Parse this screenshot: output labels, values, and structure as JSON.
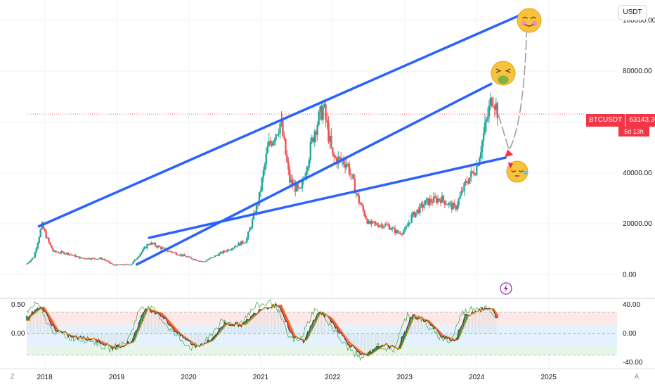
{
  "quote_currency": "USDT",
  "symbol": "BTCUSDT",
  "last_price": "63143.30",
  "countdown": "5d 13h",
  "corner_left": "Z",
  "corner_right": "A",
  "colors": {
    "up": "#26a69a",
    "down": "#ef5350",
    "trendline": "#2962ff",
    "price_line": "#f23645",
    "projection": "#9e9e9e",
    "osc_fill": "#e3f2fd",
    "osc_band_top": "#fce8e8",
    "osc_band_bottom": "#e8f5e9"
  },
  "icons": [
    "smiling-blush-emoji-icon",
    "nauseated-face-emoji-icon",
    "party-face-emoji-icon",
    "lightning-icon"
  ],
  "chart_data": [
    {
      "type": "candlestick",
      "x_ticks": [
        "2018",
        "2019",
        "2020",
        "2021",
        "2022",
        "2023",
        "2024",
        "2025"
      ],
      "y_ticks": [
        "0.00",
        "20000.00",
        "40000.00",
        "60000.00",
        "80000.00",
        "100000.00"
      ],
      "ylim": [
        -6000,
        108000
      ],
      "xlim": [
        2017.75,
        2025.95
      ],
      "last_price": 63143.3,
      "series": [
        {
          "date": 2017.75,
          "close": 4300
        },
        {
          "date": 2017.85,
          "close": 7000
        },
        {
          "date": 2017.96,
          "close": 19500
        },
        {
          "date": 2018.05,
          "close": 13000
        },
        {
          "date": 2018.12,
          "close": 9000
        },
        {
          "date": 2018.3,
          "close": 8500
        },
        {
          "date": 2018.5,
          "close": 6500
        },
        {
          "date": 2018.8,
          "close": 6300
        },
        {
          "date": 2018.95,
          "close": 3800
        },
        {
          "date": 2019.2,
          "close": 4000
        },
        {
          "date": 2019.45,
          "close": 12500
        },
        {
          "date": 2019.7,
          "close": 9500
        },
        {
          "date": 2019.95,
          "close": 7200
        },
        {
          "date": 2020.2,
          "close": 5000
        },
        {
          "date": 2020.5,
          "close": 9200
        },
        {
          "date": 2020.8,
          "close": 13500
        },
        {
          "date": 2020.97,
          "close": 29000
        },
        {
          "date": 2021.1,
          "close": 50000
        },
        {
          "date": 2021.28,
          "close": 60000
        },
        {
          "date": 2021.4,
          "close": 37000
        },
        {
          "date": 2021.55,
          "close": 32000
        },
        {
          "date": 2021.75,
          "close": 57000
        },
        {
          "date": 2021.87,
          "close": 66000
        },
        {
          "date": 2022.0,
          "close": 46000
        },
        {
          "date": 2022.2,
          "close": 44000
        },
        {
          "date": 2022.35,
          "close": 30000
        },
        {
          "date": 2022.5,
          "close": 20000
        },
        {
          "date": 2022.75,
          "close": 19500
        },
        {
          "date": 2022.9,
          "close": 16500
        },
        {
          "date": 2023.0,
          "close": 17000
        },
        {
          "date": 2023.1,
          "close": 23000
        },
        {
          "date": 2023.3,
          "close": 28500
        },
        {
          "date": 2023.5,
          "close": 30000
        },
        {
          "date": 2023.7,
          "close": 26000
        },
        {
          "date": 2023.85,
          "close": 36000
        },
        {
          "date": 2024.0,
          "close": 42500
        },
        {
          "date": 2024.15,
          "close": 62000
        },
        {
          "date": 2024.22,
          "close": 71000
        },
        {
          "date": 2024.3,
          "close": 63143
        }
      ],
      "trendlines": [
        {
          "from": [
            2017.92,
            19000
          ],
          "to": [
            2024.6,
            102000
          ]
        },
        {
          "from": [
            2019.28,
            4000
          ],
          "to": [
            2024.2,
            75000
          ]
        },
        {
          "from": [
            2019.45,
            14500
          ],
          "to": [
            2024.4,
            46000
          ]
        }
      ],
      "projection": [
        [
          2024.3,
          63000
        ],
        [
          2024.45,
          49000
        ],
        [
          2024.7,
          101000
        ]
      ]
    },
    {
      "type": "line",
      "y_ticks": [
        "40.00",
        "0.00",
        "-40.00"
      ],
      "left_ticks": [
        "0.50",
        "0.00"
      ],
      "ylim": [
        -45,
        45
      ],
      "x_ticks": [
        "2018",
        "2019",
        "2020",
        "2021",
        "2022",
        "2023",
        "2024",
        "2025"
      ],
      "series": [
        {
          "name": "",
          "x": [
            2017.75,
            2017.95,
            2018.15,
            2018.4,
            2018.7,
            2018.95,
            2019.2,
            2019.4,
            2019.6,
            2019.85,
            2020.1,
            2020.3,
            2020.5,
            2020.75,
            2021.0,
            2021.25,
            2021.45,
            2021.6,
            2021.8,
            2021.95,
            2022.2,
            2022.45,
            2022.7,
            2022.9,
            2023.1,
            2023.3,
            2023.5,
            2023.7,
            2023.85,
            2024.0,
            2024.2,
            2024.3
          ],
          "values": [
            22,
            38,
            5,
            -5,
            -8,
            -20,
            -12,
            35,
            28,
            0,
            -18,
            -10,
            14,
            12,
            35,
            40,
            -5,
            -10,
            30,
            22,
            -12,
            -32,
            -15,
            -22,
            25,
            18,
            -2,
            -10,
            25,
            32,
            35,
            18
          ]
        }
      ]
    }
  ]
}
